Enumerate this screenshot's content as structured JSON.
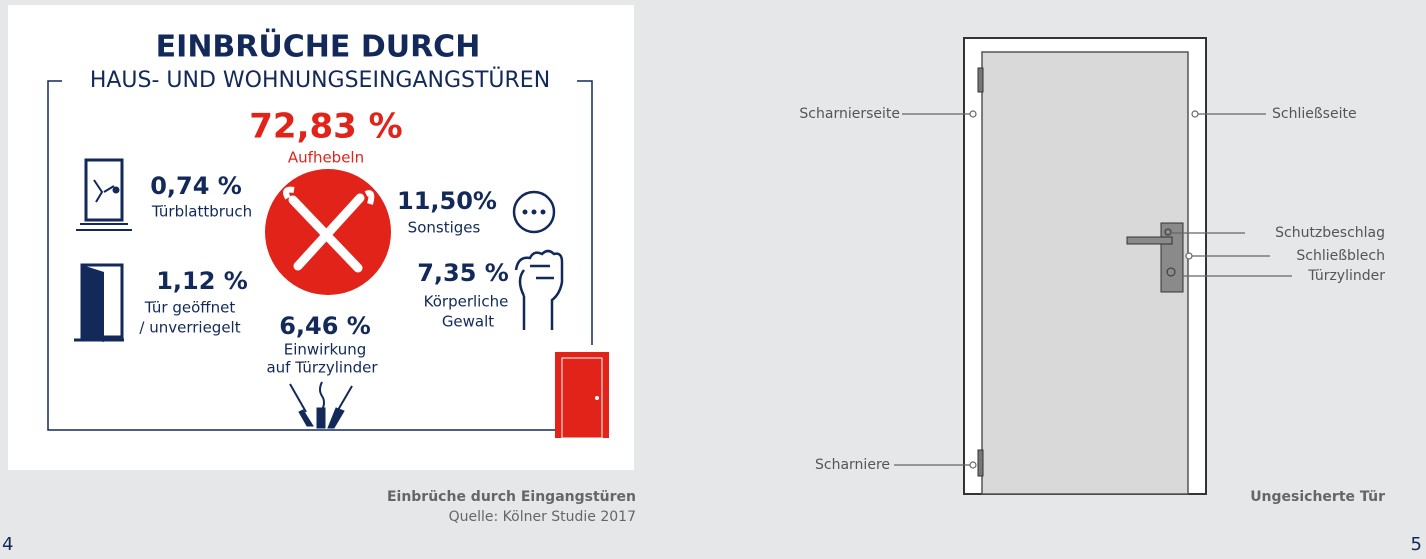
{
  "left_page": {
    "infographic": {
      "title": "EINBRÜCHE DURCH",
      "subtitle": "HAUS-  UND WOHNUNGSEINGANGSTÜREN",
      "items": [
        {
          "value": "72,83 %",
          "label": [
            "Aufhebeln"
          ]
        },
        {
          "value": "0,74 %",
          "label": [
            "Türblattbruch"
          ]
        },
        {
          "value": "11,50%",
          "label": [
            "Sonstiges"
          ]
        },
        {
          "value": "1,12 %",
          "label": [
            "Tür geöffnet",
            "/ unverriegelt"
          ]
        },
        {
          "value": "7,35 %",
          "label": [
            "Körperliche",
            "Gewalt"
          ]
        },
        {
          "value": "6,46 %",
          "label": [
            "Einwirkung",
            "auf Türzylinder"
          ]
        }
      ]
    },
    "caption": {
      "title": "Einbrüche durch Eingangstüren",
      "source": "Quelle: Kölner Studie 2017"
    },
    "page_number": "4"
  },
  "right_page": {
    "diagram": {
      "labels": [
        "Scharnierseite",
        "Schließseite",
        "Schutzbeschlag",
        "Schließblech",
        "Türzylinder",
        "Scharniere"
      ]
    },
    "caption": "Ungesicherte Tür",
    "page_number": "5"
  }
}
